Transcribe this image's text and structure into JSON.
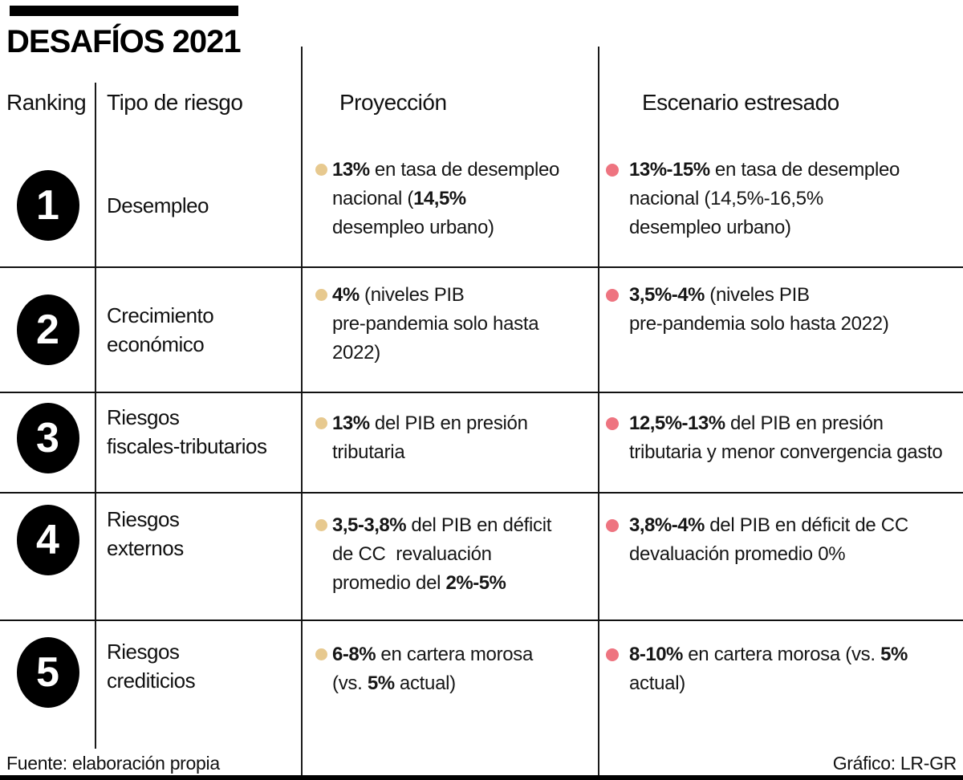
{
  "title": "DESAFÍOS 2021",
  "columns": {
    "ranking": "Ranking",
    "risk_type": "Tipo de riesgo",
    "projection": "Proyección",
    "stressed": "Escenario estresado"
  },
  "colors": {
    "projection_bullet": "#e7c98f",
    "stressed_bullet": "#ee7480",
    "rank_circle": "#000000",
    "rule": "#1a1a1a"
  },
  "rows": [
    {
      "rank": "1",
      "risk": "Desempleo",
      "projection": [
        {
          "t": "13%",
          "b": true
        },
        {
          "t": " en tasa de desempleo\nnacional (",
          "b": false
        },
        {
          "t": "14,5%",
          "b": true
        },
        {
          "t": "\ndesempleo urbano)",
          "b": false
        }
      ],
      "stressed": [
        {
          "t": "13%-15%",
          "b": true
        },
        {
          "t": " en tasa de desempleo\nnacional (14,5%-16,5%\ndesempleo urbano)",
          "b": false
        }
      ]
    },
    {
      "rank": "2",
      "risk": "Crecimiento\neconómico",
      "projection": [
        {
          "t": "4%",
          "b": true
        },
        {
          "t": " (niveles PIB\npre-pandemia solo hasta\n2022)",
          "b": false
        }
      ],
      "stressed": [
        {
          "t": "3,5%-4%",
          "b": true
        },
        {
          "t": " (niveles PIB\npre-pandemia solo hasta 2022)",
          "b": false
        }
      ]
    },
    {
      "rank": "3",
      "risk": "Riesgos\nfiscales-tributarios",
      "projection": [
        {
          "t": "13%",
          "b": true
        },
        {
          "t": " del PIB en presión\ntributaria",
          "b": false
        }
      ],
      "stressed": [
        {
          "t": "12,5%-13%",
          "b": true
        },
        {
          "t": " del PIB en presión\ntributaria y menor convergencia gasto",
          "b": false
        }
      ]
    },
    {
      "rank": "4",
      "risk": "Riesgos\nexternos",
      "projection": [
        {
          "t": "3,5-3,8%",
          "b": true
        },
        {
          "t": " del PIB en déficit\nde CC  revaluación\npromedio del ",
          "b": false
        },
        {
          "t": "2%-5%",
          "b": true
        }
      ],
      "stressed": [
        {
          "t": "3,8%-4%",
          "b": true
        },
        {
          "t": " del PIB en déficit de CC\ndevaluación promedio 0%",
          "b": false
        }
      ]
    },
    {
      "rank": "5",
      "risk": "Riesgos\ncrediticios",
      "projection": [
        {
          "t": "6-8%",
          "b": true
        },
        {
          "t": " en cartera morosa\n(vs. ",
          "b": false
        },
        {
          "t": "5%",
          "b": true
        },
        {
          "t": " actual)",
          "b": false
        }
      ],
      "stressed": [
        {
          "t": "8-10%",
          "b": true
        },
        {
          "t": " en cartera morosa (vs. ",
          "b": false
        },
        {
          "t": "5%",
          "b": true
        },
        {
          "t": "\nactual)",
          "b": false
        }
      ]
    }
  ],
  "footer": {
    "source": "Fuente: elaboración propia",
    "credit": "Gráfico: LR-GR"
  },
  "chart_data": {
    "type": "table",
    "title": "DESAFÍOS 2021",
    "columns": [
      "Ranking",
      "Tipo de riesgo",
      "Proyección",
      "Escenario estresado"
    ],
    "rows": [
      [
        "1",
        "Desempleo",
        "13% en tasa de desempleo nacional (14,5% desempleo urbano)",
        "13%-15% en tasa de desempleo nacional (14,5%-16,5% desempleo urbano)"
      ],
      [
        "2",
        "Crecimiento económico",
        "4% (niveles PIB pre-pandemia solo hasta 2022)",
        "3,5%-4% (niveles PIB pre-pandemia solo hasta 2022)"
      ],
      [
        "3",
        "Riesgos fiscales-tributarios",
        "13% del PIB en presión tributaria",
        "12,5%-13% del PIB en presión tributaria y menor convergencia gasto"
      ],
      [
        "4",
        "Riesgos externos",
        "3,5-3,8% del PIB en déficit de CC  revaluación promedio del 2%-5%",
        "3,8%-4% del PIB en déficit de CC devaluación promedio 0%"
      ],
      [
        "5",
        "Riesgos crediticios",
        "6-8% en cartera morosa (vs. 5% actual)",
        "8-10% en cartera morosa (vs. 5% actual)"
      ]
    ],
    "source": "Fuente: elaboración propia",
    "credit": "Gráfico: LR-GR"
  }
}
